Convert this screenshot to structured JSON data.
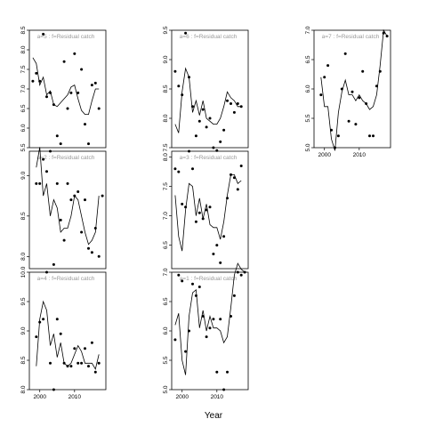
{
  "figure": {
    "xlabel": "Year"
  },
  "chart_data": [
    {
      "type": "scatter",
      "panel": "a=5",
      "label": "a=5 : f=Residual catch",
      "xlim": [
        1997,
        2019
      ],
      "ylim": [
        5.5,
        8.5
      ],
      "yticks": [
        "5.5",
        "6.0",
        "6.5",
        "7.0",
        "7.5",
        "8.0",
        "8.5"
      ],
      "show_x_ticks": false,
      "points": [
        [
          1998,
          7.2
        ],
        [
          1999,
          7.4
        ],
        [
          2000,
          7.2
        ],
        [
          2001,
          8.4
        ],
        [
          2002,
          6.8
        ],
        [
          2003,
          6.9
        ],
        [
          2004,
          6.6
        ],
        [
          2005,
          5.8
        ],
        [
          2006,
          5.6
        ],
        [
          2007,
          7.7
        ],
        [
          2008,
          6.5
        ],
        [
          2009,
          6.9
        ],
        [
          2010,
          7.9
        ],
        [
          2011,
          6.9
        ],
        [
          2012,
          7.5
        ],
        [
          2013,
          6.1
        ],
        [
          2014,
          5.6
        ],
        [
          2015,
          7.1
        ],
        [
          2016,
          7.15
        ],
        [
          2017,
          6.5
        ]
      ],
      "fitted": [
        [
          1998,
          7.8
        ],
        [
          1999,
          7.65
        ],
        [
          2000,
          7.1
        ],
        [
          2001,
          7.3
        ],
        [
          2002,
          6.85
        ],
        [
          2003,
          6.95
        ],
        [
          2004,
          6.6
        ],
        [
          2005,
          6.55
        ],
        [
          2006,
          6.65
        ],
        [
          2007,
          6.75
        ],
        [
          2008,
          6.85
        ],
        [
          2009,
          7.05
        ],
        [
          2010,
          7.1
        ],
        [
          2011,
          6.75
        ],
        [
          2012,
          6.45
        ],
        [
          2013,
          6.35
        ],
        [
          2014,
          6.35
        ],
        [
          2015,
          6.7
        ],
        [
          2016,
          7.0
        ],
        [
          2017,
          7.0
        ]
      ]
    },
    {
      "type": "scatter",
      "panel": "a=6",
      "label": "a=6 : f=Residual catch",
      "xlim": [
        1997,
        2019
      ],
      "ylim": [
        7.5,
        9.5
      ],
      "yticks": [
        "7.5",
        "8.0",
        "8.5",
        "9.0",
        "9.5"
      ],
      "show_x_ticks": false,
      "points": [
        [
          1998,
          8.8
        ],
        [
          1999,
          8.55
        ],
        [
          2000,
          8.4
        ],
        [
          2001,
          9.45
        ],
        [
          2002,
          8.7
        ],
        [
          2003,
          8.2
        ],
        [
          2004,
          7.7
        ],
        [
          2005,
          7.95
        ],
        [
          2006,
          8.15
        ],
        [
          2007,
          7.85
        ],
        [
          2008,
          8.0
        ],
        [
          2009,
          7.5
        ],
        [
          2010,
          7.45
        ],
        [
          2011,
          7.6
        ],
        [
          2012,
          7.8
        ],
        [
          2013,
          8.3
        ],
        [
          2014,
          8.25
        ],
        [
          2015,
          8.1
        ],
        [
          2016,
          8.25
        ],
        [
          2017,
          8.2
        ]
      ],
      "fitted": [
        [
          1998,
          7.9
        ],
        [
          1999,
          7.75
        ],
        [
          2000,
          8.45
        ],
        [
          2001,
          8.85
        ],
        [
          2002,
          8.7
        ],
        [
          2003,
          8.1
        ],
        [
          2004,
          8.3
        ],
        [
          2005,
          8.05
        ],
        [
          2006,
          8.3
        ],
        [
          2007,
          8.0
        ],
        [
          2008,
          7.95
        ],
        [
          2009,
          7.9
        ],
        [
          2010,
          7.9
        ],
        [
          2011,
          8.0
        ],
        [
          2012,
          8.2
        ],
        [
          2013,
          8.45
        ],
        [
          2014,
          8.35
        ],
        [
          2015,
          8.3
        ],
        [
          2016,
          8.2
        ],
        [
          2017,
          8.2
        ]
      ]
    },
    {
      "type": "scatter",
      "panel": "a=7",
      "label": "a=7 : f=Residual catch",
      "xlim": [
        1997,
        2019
      ],
      "ylim": [
        5.0,
        7.0
      ],
      "yticks": [
        "5.0",
        "5.5",
        "6.0",
        "6.5",
        "7.0"
      ],
      "xticks": [
        "2000",
        "2010"
      ],
      "xtick_values": [
        2000,
        2010
      ],
      "show_x_ticks": true,
      "points": [
        [
          1999,
          5.9
        ],
        [
          2000,
          6.2
        ],
        [
          2001,
          6.4
        ],
        [
          2002,
          5.3
        ],
        [
          2003,
          5.0
        ],
        [
          2004,
          5.2
        ],
        [
          2005,
          6.0
        ],
        [
          2006,
          6.6
        ],
        [
          2007,
          5.45
        ],
        [
          2008,
          5.95
        ],
        [
          2009,
          5.4
        ],
        [
          2010,
          5.85
        ],
        [
          2011,
          6.3
        ],
        [
          2012,
          5.75
        ],
        [
          2013,
          5.2
        ],
        [
          2014,
          5.2
        ],
        [
          2015,
          6.05
        ],
        [
          2016,
          6.3
        ],
        [
          2017,
          6.95
        ],
        [
          2018,
          6.9
        ]
      ],
      "fitted": [
        [
          1999,
          6.2
        ],
        [
          2000,
          5.7
        ],
        [
          2001,
          5.7
        ],
        [
          2002,
          5.15
        ],
        [
          2003,
          4.95
        ],
        [
          2004,
          5.6
        ],
        [
          2005,
          5.95
        ],
        [
          2006,
          6.15
        ],
        [
          2007,
          5.9
        ],
        [
          2008,
          5.9
        ],
        [
          2009,
          5.8
        ],
        [
          2010,
          5.9
        ],
        [
          2011,
          5.8
        ],
        [
          2012,
          5.75
        ],
        [
          2013,
          5.65
        ],
        [
          2014,
          5.7
        ],
        [
          2015,
          5.9
        ],
        [
          2016,
          6.4
        ],
        [
          2017,
          7.0
        ],
        [
          2018,
          6.9
        ]
      ]
    },
    {
      "type": "scatter",
      "panel": "a=2",
      "label": "a=2 : f=Residual catch",
      "xlim": [
        1997,
        2019
      ],
      "ylim": [
        7.85,
        9.3
      ],
      "yticks": [
        "8.0",
        "8.5",
        "9.0"
      ],
      "show_x_ticks": false,
      "points": [
        [
          1999,
          8.9
        ],
        [
          2000,
          8.9
        ],
        [
          2001,
          9.2
        ],
        [
          2002,
          9.05
        ],
        [
          2003,
          9.3
        ],
        [
          2004,
          7.9
        ],
        [
          2005,
          8.9
        ],
        [
          2006,
          8.45
        ],
        [
          2007,
          8.2
        ],
        [
          2008,
          8.9
        ],
        [
          2009,
          8.7
        ],
        [
          2010,
          8.75
        ],
        [
          2011,
          8.8
        ],
        [
          2012,
          8.3
        ],
        [
          2013,
          8.7
        ],
        [
          2014,
          8.1
        ],
        [
          2015,
          8.05
        ],
        [
          2016,
          8.35
        ],
        [
          2017,
          8.0
        ],
        [
          2018,
          8.75
        ]
      ],
      "fitted": [
        [
          1999,
          9.1
        ],
        [
          2000,
          9.35
        ],
        [
          2001,
          8.75
        ],
        [
          2002,
          8.9
        ],
        [
          2003,
          8.5
        ],
        [
          2004,
          8.7
        ],
        [
          2005,
          8.6
        ],
        [
          2006,
          8.3
        ],
        [
          2007,
          8.35
        ],
        [
          2008,
          8.35
        ],
        [
          2009,
          8.5
        ],
        [
          2010,
          8.75
        ],
        [
          2011,
          8.7
        ],
        [
          2012,
          8.5
        ],
        [
          2013,
          8.3
        ],
        [
          2014,
          8.15
        ],
        [
          2015,
          8.2
        ],
        [
          2016,
          8.3
        ],
        [
          2017,
          8.75
        ]
      ]
    },
    {
      "type": "scatter",
      "panel": "a=3",
      "label": "a=3 : f=Residual catch",
      "xlim": [
        1997,
        2019
      ],
      "ylim": [
        6.1,
        8.1
      ],
      "yticks": [
        "6.5",
        "7.0",
        "7.5",
        "8.0"
      ],
      "show_x_ticks": false,
      "points": [
        [
          1998,
          7.8
        ],
        [
          1999,
          7.75
        ],
        [
          2000,
          7.2
        ],
        [
          2001,
          7.15
        ],
        [
          2002,
          8.1
        ],
        [
          2003,
          7.8
        ],
        [
          2004,
          6.9
        ],
        [
          2005,
          7.05
        ],
        [
          2006,
          6.95
        ],
        [
          2007,
          7.1
        ],
        [
          2008,
          7.15
        ],
        [
          2009,
          6.35
        ],
        [
          2010,
          6.5
        ],
        [
          2011,
          6.2
        ],
        [
          2012,
          6.65
        ],
        [
          2013,
          7.3
        ],
        [
          2014,
          7.7
        ],
        [
          2015,
          7.65
        ],
        [
          2016,
          7.45
        ],
        [
          2017,
          7.85
        ]
      ],
      "fitted": [
        [
          1998,
          7.35
        ],
        [
          1999,
          6.65
        ],
        [
          2000,
          6.4
        ],
        [
          2001,
          7.1
        ],
        [
          2002,
          7.55
        ],
        [
          2003,
          7.5
        ],
        [
          2004,
          7.0
        ],
        [
          2005,
          7.3
        ],
        [
          2006,
          6.95
        ],
        [
          2007,
          7.2
        ],
        [
          2008,
          6.85
        ],
        [
          2009,
          6.8
        ],
        [
          2010,
          6.8
        ],
        [
          2011,
          6.6
        ],
        [
          2012,
          6.9
        ],
        [
          2013,
          7.35
        ],
        [
          2014,
          7.7
        ],
        [
          2015,
          7.7
        ],
        [
          2016,
          7.55
        ],
        [
          2017,
          7.6
        ]
      ]
    },
    {
      "type": "scatter",
      "panel": "a=4",
      "label": "a=4 : f=Residual catch",
      "xlim": [
        1997,
        2019
      ],
      "ylim": [
        8.0,
        10.0
      ],
      "yticks": [
        "8.0",
        "8.5",
        "9.0",
        "9.5",
        "10.0"
      ],
      "xticks": [
        "2000",
        "2010"
      ],
      "xtick_values": [
        2000,
        2010
      ],
      "show_x_ticks": true,
      "points": [
        [
          1999,
          8.9
        ],
        [
          2000,
          9.15
        ],
        [
          2001,
          9.2
        ],
        [
          2002,
          10.0
        ],
        [
          2003,
          8.45
        ],
        [
          2004,
          8.0
        ],
        [
          2005,
          9.2
        ],
        [
          2006,
          8.95
        ],
        [
          2007,
          8.45
        ],
        [
          2008,
          8.4
        ],
        [
          2009,
          8.4
        ],
        [
          2010,
          8.7
        ],
        [
          2011,
          8.45
        ],
        [
          2012,
          8.45
        ],
        [
          2013,
          8.7
        ],
        [
          2014,
          8.4
        ],
        [
          2015,
          8.8
        ],
        [
          2016,
          8.3
        ],
        [
          2017,
          8.45
        ]
      ],
      "fitted": [
        [
          1999,
          8.4
        ],
        [
          2000,
          9.2
        ],
        [
          2001,
          9.5
        ],
        [
          2002,
          9.35
        ],
        [
          2003,
          8.75
        ],
        [
          2004,
          8.95
        ],
        [
          2005,
          8.55
        ],
        [
          2006,
          8.8
        ],
        [
          2007,
          8.45
        ],
        [
          2008,
          8.4
        ],
        [
          2009,
          8.45
        ],
        [
          2010,
          8.6
        ],
        [
          2011,
          8.75
        ],
        [
          2012,
          8.65
        ],
        [
          2013,
          8.45
        ],
        [
          2014,
          8.45
        ],
        [
          2015,
          8.45
        ],
        [
          2016,
          8.35
        ],
        [
          2017,
          8.6
        ]
      ]
    },
    {
      "type": "scatter",
      "panel": "a=1",
      "label": "a=1 : f=Residual catch",
      "xlim": [
        1997,
        2019
      ],
      "ylim": [
        5.0,
        7.0
      ],
      "yticks": [
        "5.0",
        "5.5",
        "6.0",
        "6.5",
        "7.0"
      ],
      "xticks": [
        "2000",
        "2010"
      ],
      "xtick_values": [
        2000,
        2010
      ],
      "show_x_ticks": true,
      "points": [
        [
          1998,
          5.85
        ],
        [
          1999,
          6.95
        ],
        [
          2000,
          6.85
        ],
        [
          2001,
          5.65
        ],
        [
          2002,
          6.0
        ],
        [
          2003,
          6.8
        ],
        [
          2004,
          6.6
        ],
        [
          2005,
          6.75
        ],
        [
          2006,
          6.25
        ],
        [
          2007,
          5.9
        ],
        [
          2008,
          6.05
        ],
        [
          2009,
          6.2
        ],
        [
          2010,
          5.3
        ],
        [
          2011,
          6.2
        ],
        [
          2012,
          5.0
        ],
        [
          2013,
          5.3
        ],
        [
          2014,
          6.25
        ],
        [
          2015,
          6.6
        ],
        [
          2016,
          7.0
        ],
        [
          2017,
          6.95
        ],
        [
          2018,
          7.0
        ]
      ],
      "fitted": [
        [
          1998,
          6.1
        ],
        [
          1999,
          6.3
        ],
        [
          2000,
          5.5
        ],
        [
          2001,
          5.25
        ],
        [
          2002,
          6.25
        ],
        [
          2003,
          6.65
        ],
        [
          2004,
          6.7
        ],
        [
          2005,
          6.05
        ],
        [
          2006,
          6.35
        ],
        [
          2007,
          6.0
        ],
        [
          2008,
          6.25
        ],
        [
          2009,
          6.05
        ],
        [
          2010,
          6.05
        ],
        [
          2011,
          6.0
        ],
        [
          2012,
          5.8
        ],
        [
          2013,
          5.9
        ],
        [
          2014,
          6.4
        ],
        [
          2015,
          6.95
        ],
        [
          2016,
          7.15
        ],
        [
          2017,
          7.05
        ],
        [
          2018,
          7.0
        ]
      ]
    }
  ]
}
